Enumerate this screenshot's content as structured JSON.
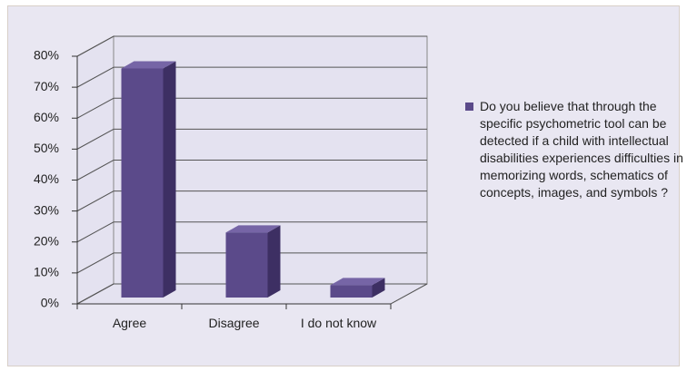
{
  "chart_data": {
    "type": "bar3d",
    "categories": [
      "Agree",
      "Disagree",
      "I do not know"
    ],
    "series": [
      {
        "name": "Do you believe that through the specific psychometric tool can be detected if a child with intellectual disabilities experiences difficulties in memorizing words, schematics of concepts, images, and symbols ?",
        "color": "#5b4a8a",
        "values": [
          74,
          21,
          4
        ]
      }
    ],
    "ylim": [
      0,
      80
    ],
    "yticks": [
      {
        "value": 0,
        "label": "0%"
      },
      {
        "value": 10,
        "label": "10%"
      },
      {
        "value": 20,
        "label": "20%"
      },
      {
        "value": 30,
        "label": "30%"
      },
      {
        "value": 40,
        "label": "40%"
      },
      {
        "value": 50,
        "label": "50%"
      },
      {
        "value": 60,
        "label": "60%"
      },
      {
        "value": 70,
        "label": "70%"
      },
      {
        "value": 80,
        "label": "80%"
      }
    ],
    "grid": true,
    "legend": "right"
  }
}
